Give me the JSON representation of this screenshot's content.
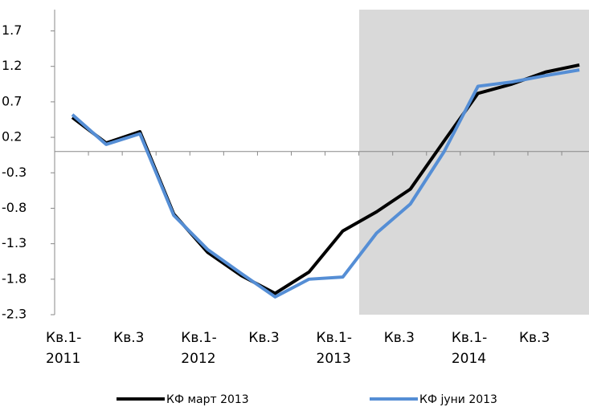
{
  "chart_data": {
    "type": "line",
    "categories": [
      "Кв.1-\n2011",
      null,
      "Кв.3",
      null,
      "Кв.1-\n2012",
      null,
      "Кв.3",
      null,
      "Кв.1-\n2013",
      null,
      "Кв.3",
      null,
      "Кв.1-\n2014",
      null,
      "Кв.3",
      null
    ],
    "series": [
      {
        "name": "КФ март 2013",
        "color": "#000000",
        "values": [
          0.48,
          0.12,
          0.28,
          -0.88,
          -1.42,
          -1.75,
          -2.0,
          -1.7,
          -1.12,
          -0.85,
          -0.53,
          0.15,
          0.82,
          0.95,
          1.12,
          1.22
        ]
      },
      {
        "name": "КФ јуни 2013",
        "color": "#558ed5",
        "values": [
          0.52,
          0.1,
          0.25,
          -0.9,
          -1.38,
          -1.72,
          -2.05,
          -1.8,
          -1.77,
          -1.15,
          -0.74,
          0.0,
          0.92,
          0.98,
          1.07,
          1.15
        ]
      }
    ],
    "ylim": [
      -2.3,
      2.0
    ],
    "yticks": [
      1.7,
      1.2,
      0.7,
      0.2,
      -0.3,
      -0.8,
      -1.3,
      -1.8,
      -2.3
    ]
  }
}
